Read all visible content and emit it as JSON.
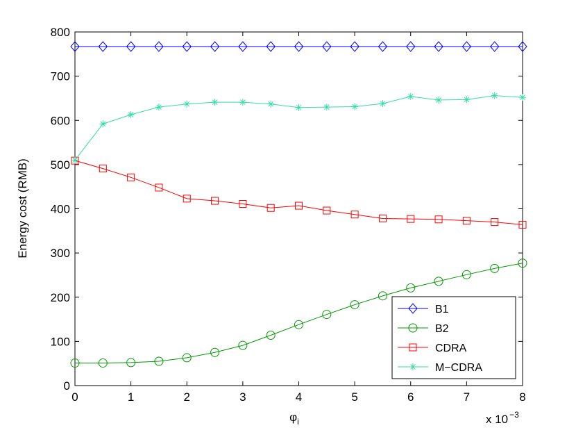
{
  "chart_data": {
    "type": "line",
    "xlabel": "φ",
    "xlabel_subscript": "i",
    "ylabel": "Energy cost (RMB)",
    "x_multiplier_label": "x 10",
    "x_multiplier_exponent": "−3",
    "xlim": [
      0,
      8
    ],
    "ylim": [
      0,
      800
    ],
    "x_ticks": [
      0,
      1,
      2,
      3,
      4,
      5,
      6,
      7,
      8
    ],
    "y_ticks": [
      0,
      100,
      200,
      300,
      400,
      500,
      600,
      700,
      800
    ],
    "grid": false,
    "legend_position": "bottom-right",
    "x": [
      0,
      0.5,
      1,
      1.5,
      2,
      2.5,
      3,
      3.5,
      4,
      4.5,
      5,
      5.5,
      6,
      6.5,
      7,
      7.5,
      8
    ],
    "series": [
      {
        "name": "B1",
        "color": "#0000ff",
        "marker": "diamond",
        "values": [
          767,
          767,
          767,
          767,
          767,
          767,
          767,
          767,
          767,
          767,
          767,
          767,
          767,
          767,
          767,
          767,
          767
        ]
      },
      {
        "name": "B2",
        "color": "#009900",
        "marker": "circle",
        "values": [
          51,
          51,
          52,
          55,
          63,
          75,
          91,
          114,
          138,
          161,
          183,
          203,
          221,
          236,
          251,
          265,
          277
        ]
      },
      {
        "name": "CDRA",
        "color": "#ff0000",
        "marker": "square",
        "values": [
          509,
          491,
          471,
          448,
          423,
          418,
          411,
          402,
          407,
          396,
          387,
          378,
          377,
          376,
          373,
          370,
          364
        ]
      },
      {
        "name": "M−CDRA",
        "color": "#33ddaa",
        "marker": "asterisk",
        "values": [
          510,
          592,
          613,
          630,
          637,
          641,
          641,
          637,
          629,
          630,
          631,
          638,
          654,
          646,
          647,
          656,
          652
        ]
      }
    ]
  }
}
